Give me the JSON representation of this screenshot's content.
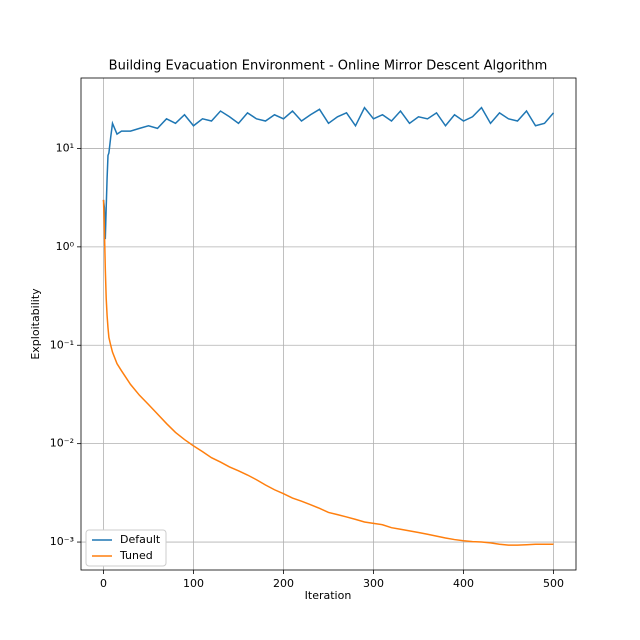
{
  "chart_data": {
    "type": "line",
    "title": "Building Evacuation Environment - Online Mirror Descent Algorithm",
    "x_label": "Iteration",
    "y_label": "Exploitability",
    "x": [
      0,
      1,
      2,
      3,
      4,
      5,
      6,
      8,
      10,
      15,
      20,
      30,
      40,
      50,
      60,
      70,
      80,
      90,
      100,
      110,
      120,
      130,
      140,
      150,
      160,
      170,
      180,
      190,
      200,
      210,
      220,
      230,
      240,
      250,
      260,
      270,
      280,
      290,
      300,
      310,
      320,
      330,
      340,
      350,
      360,
      370,
      380,
      390,
      400,
      410,
      420,
      430,
      440,
      450,
      460,
      470,
      480,
      490,
      500
    ],
    "series": [
      {
        "name": "Default",
        "color": "#1f77b4",
        "values": [
          3.0,
          2.5,
          1.2,
          2.5,
          5,
          8.5,
          9,
          13,
          18,
          14,
          15,
          15,
          16,
          17,
          16,
          20,
          18,
          22,
          17,
          20,
          19,
          24,
          21,
          18,
          23,
          20,
          19,
          22,
          20,
          24,
          19,
          22,
          25,
          18,
          21,
          23,
          17,
          26,
          20,
          22,
          19,
          24,
          18,
          21,
          20,
          23,
          17,
          22,
          19,
          21,
          26,
          18,
          23,
          20,
          19,
          24,
          17,
          18,
          23
        ]
      },
      {
        "name": "Tuned",
        "color": "#ff7f0e",
        "values": [
          3.0,
          1.5,
          0.6,
          0.3,
          0.2,
          0.15,
          0.12,
          0.1,
          0.085,
          0.065,
          0.055,
          0.04,
          0.031,
          0.025,
          0.02,
          0.016,
          0.013,
          0.011,
          0.0095,
          0.0083,
          0.0072,
          0.0065,
          0.0058,
          0.0053,
          0.0048,
          0.0043,
          0.0038,
          0.0034,
          0.0031,
          0.0028,
          0.0026,
          0.0024,
          0.0022,
          0.002,
          0.0019,
          0.0018,
          0.0017,
          0.0016,
          0.00155,
          0.0015,
          0.0014,
          0.00135,
          0.0013,
          0.00125,
          0.0012,
          0.00115,
          0.0011,
          0.00106,
          0.00103,
          0.00101,
          0.001,
          0.00098,
          0.00095,
          0.00093,
          0.00093,
          0.00094,
          0.00095,
          0.00095,
          0.00095
        ]
      }
    ],
    "xlim": [
      -25,
      525
    ],
    "xticks": [
      0,
      100,
      200,
      300,
      400,
      500
    ],
    "ylim": [
      0.00052,
      52
    ],
    "log_y": true,
    "yticks": [
      {
        "value": 0.001,
        "label": "10⁻³"
      },
      {
        "value": 0.01,
        "label": "10⁻²"
      },
      {
        "value": 0.1,
        "label": "10⁻¹"
      },
      {
        "value": 1,
        "label": "10⁰"
      },
      {
        "value": 10,
        "label": "10¹"
      }
    ],
    "grid": true,
    "legend": "lower left"
  }
}
